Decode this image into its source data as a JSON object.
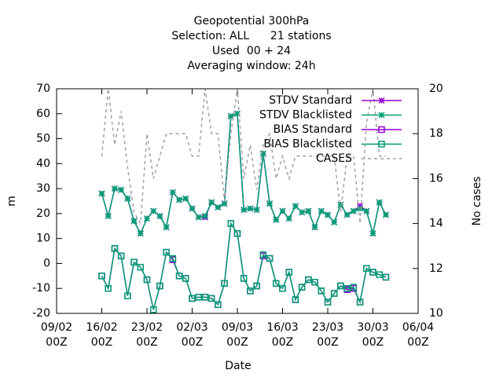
{
  "chart_data": {
    "type": "line",
    "title_lines": [
      "Geopotential 300hPa",
      "Selection: ALL      21 stations",
      "Used  00 + 24",
      "Averaging window: 24h"
    ],
    "xlabel": "Date",
    "ylabel": "m",
    "y2label": "No cases",
    "xlim": [
      0,
      56
    ],
    "xticks": [
      {
        "value": 0,
        "label": "09/02 00Z"
      },
      {
        "value": 7,
        "label": "16/02 00Z"
      },
      {
        "value": 14,
        "label": "23/02 00Z"
      },
      {
        "value": 21,
        "label": "02/03 00Z"
      },
      {
        "value": 28,
        "label": "09/03 00Z"
      },
      {
        "value": 35,
        "label": "16/03 00Z"
      },
      {
        "value": 42,
        "label": "23/03 00Z"
      },
      {
        "value": 49,
        "label": "30/03 00Z"
      },
      {
        "value": 56,
        "label": "06/04 00Z"
      }
    ],
    "ylim": [
      -20,
      70
    ],
    "yticks": [
      -20,
      -10,
      0,
      10,
      20,
      30,
      40,
      50,
      60,
      70
    ],
    "y2lim": [
      10,
      20
    ],
    "y2ticks": [
      10,
      12,
      14,
      16,
      18,
      20
    ],
    "legend": "top-right",
    "x": [
      7,
      8,
      9,
      10,
      11,
      12,
      13,
      14,
      15,
      16,
      17,
      18,
      19,
      20,
      21,
      22,
      23,
      24,
      25,
      26,
      27,
      28,
      29,
      30,
      31,
      32,
      33,
      34,
      35,
      36,
      37,
      38,
      39,
      40,
      41,
      42,
      43,
      44,
      45,
      46,
      47,
      48,
      49,
      50,
      51
    ],
    "series": [
      {
        "name": "STDV Standard",
        "color": "#9400d3",
        "marker": "star",
        "values": [
          28,
          19,
          30,
          29.5,
          26,
          17,
          12,
          18,
          21,
          19,
          14.5,
          28.5,
          25.5,
          26,
          22,
          18.5,
          18.5,
          24.5,
          22.5,
          24,
          59,
          60,
          21.5,
          22,
          21.5,
          44,
          24,
          17.5,
          21,
          18,
          23,
          20.5,
          21,
          14.5,
          21,
          19.5,
          16.5,
          23.5,
          19.5,
          21,
          23,
          21,
          12,
          24.5,
          19.5
        ]
      },
      {
        "name": "STDV Blacklisted",
        "color": "#009e73",
        "marker": "star",
        "values": [
          28,
          19,
          30,
          29.5,
          26,
          17,
          12,
          18,
          21,
          19,
          14.5,
          28.5,
          25.5,
          26,
          22,
          18.5,
          19,
          24.5,
          22.5,
          24,
          59,
          60,
          21.5,
          22,
          21.5,
          44,
          24,
          17.5,
          21,
          18,
          23,
          20.5,
          21,
          14.5,
          21,
          19.5,
          16.5,
          23.5,
          19.5,
          21,
          22,
          21,
          12,
          24.5,
          19.5
        ]
      },
      {
        "name": "BIAS Standard",
        "color": "#9400d3",
        "marker": "square",
        "values": [
          -5,
          -10,
          6,
          3,
          -13,
          0.5,
          -1.5,
          -6.5,
          -18.5,
          -9,
          4.5,
          1.5,
          -5,
          -6,
          -14,
          -13.5,
          -13.5,
          -14,
          -16.5,
          -8,
          16,
          12,
          -6,
          -11,
          -9,
          3,
          2,
          -8,
          -10,
          -3.5,
          -14.5,
          -9.5,
          -6.5,
          -7.5,
          -11,
          -15.5,
          -12,
          -9,
          -10.5,
          -10,
          -15.5,
          -2,
          -3.5,
          -4.5,
          -5.5
        ]
      },
      {
        "name": "BIAS Blacklisted",
        "color": "#009e73",
        "marker": "square",
        "values": [
          -5,
          -10,
          6,
          3,
          -13,
          0.5,
          -1.5,
          -6.5,
          -18.5,
          -9,
          4.5,
          2,
          -5,
          -6,
          -14,
          -13.5,
          -13.5,
          -14,
          -16.5,
          -8,
          16,
          12,
          -6,
          -11,
          -9,
          3.5,
          2,
          -8,
          -10,
          -3.5,
          -14.5,
          -9.5,
          -6.5,
          -7.5,
          -11,
          -15.5,
          -12,
          -9,
          -10,
          -9.5,
          -15.5,
          -2,
          -3.5,
          -4.5,
          -5.5
        ]
      },
      {
        "name": "CASES",
        "color": "#a0a0a0",
        "marker": "none",
        "dashed": true,
        "axis": "y2",
        "values": [
          17,
          20,
          17.5,
          19,
          16.5,
          14.5,
          14,
          18,
          16,
          17,
          18,
          18,
          18,
          18,
          17,
          17,
          20,
          18,
          18,
          15,
          18,
          20,
          16,
          17.5,
          15.5,
          17.5,
          18,
          16,
          17,
          16,
          17,
          17,
          17,
          17,
          17,
          17,
          17,
          14.5,
          17,
          17,
          14,
          18.5,
          20,
          17,
          17
        ]
      }
    ]
  }
}
